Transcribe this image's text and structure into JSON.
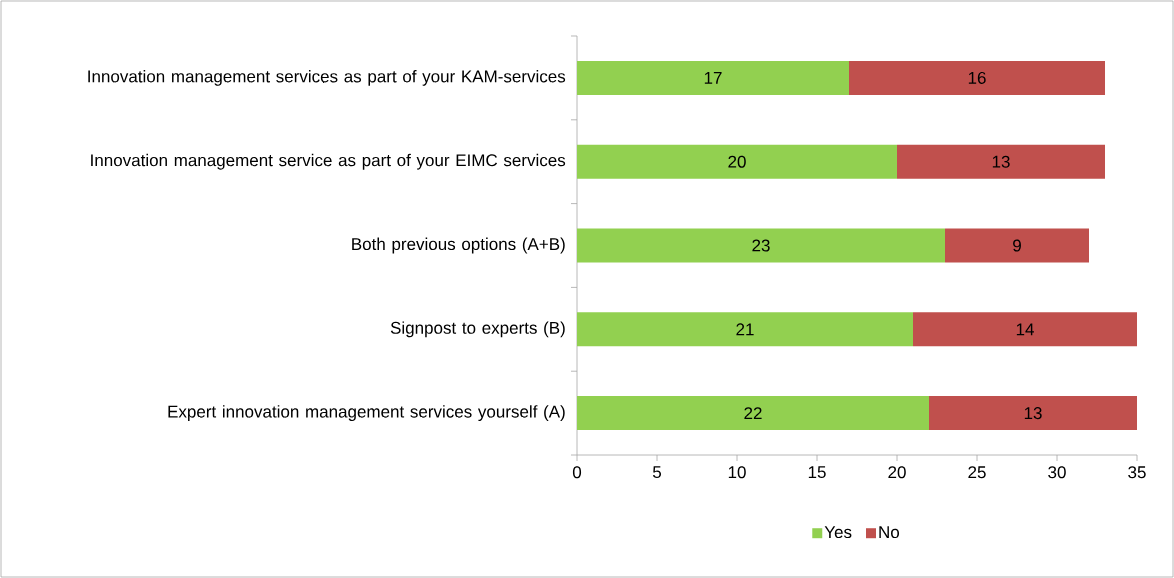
{
  "chart_data": {
    "type": "bar",
    "orientation": "horizontal",
    "stacked": true,
    "categories": [
      "Innovation management services as part of your KAM-services",
      "Innovation management service as part of your EIMC services",
      "Both previous options (A+B)",
      "Signpost to experts (B)",
      "Expert innovation management services yourself (A)"
    ],
    "series": [
      {
        "name": "Yes",
        "color": "#92d050",
        "values": [
          17,
          20,
          23,
          21,
          22
        ]
      },
      {
        "name": "No",
        "color": "#c0504d",
        "values": [
          16,
          13,
          9,
          14,
          13
        ]
      }
    ],
    "xlim": [
      0,
      35
    ],
    "xticks": [
      0,
      5,
      10,
      15,
      20,
      25,
      30,
      35
    ],
    "data_labels": true,
    "grid": false,
    "legend": "bottom"
  }
}
